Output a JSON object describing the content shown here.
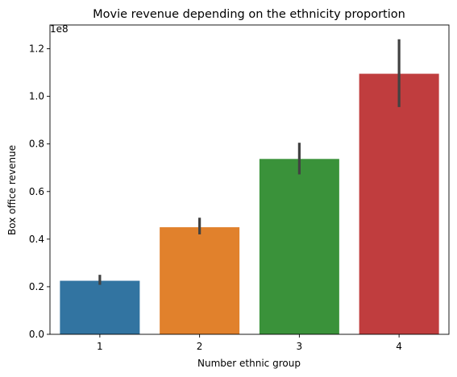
{
  "chart_data": {
    "type": "bar",
    "title": "Movie revenue depending on the ethnicity proportion",
    "xlabel": "Number ethnic group",
    "ylabel": "Box office revenue",
    "offset_label": "1e8",
    "categories": [
      "1",
      "2",
      "3",
      "4"
    ],
    "values": [
      22500000,
      45000000,
      73700000,
      109500000
    ],
    "error_low": [
      20800000,
      42000000,
      67200000,
      95500000
    ],
    "error_high": [
      25000000,
      49000000,
      80500000,
      124000000
    ],
    "colors": [
      "#3274a1",
      "#e1812c",
      "#3a923a",
      "#c03d3e"
    ],
    "error_color": "#424242",
    "ylim": [
      0,
      130000000
    ],
    "y_tick_values": [
      0,
      20000000,
      40000000,
      60000000,
      80000000,
      100000000,
      120000000
    ],
    "y_tick_labels": [
      "0.0",
      "0.2",
      "0.4",
      "0.6",
      "0.8",
      "1.0",
      "1.2"
    ],
    "grid": false,
    "legend": "none"
  }
}
